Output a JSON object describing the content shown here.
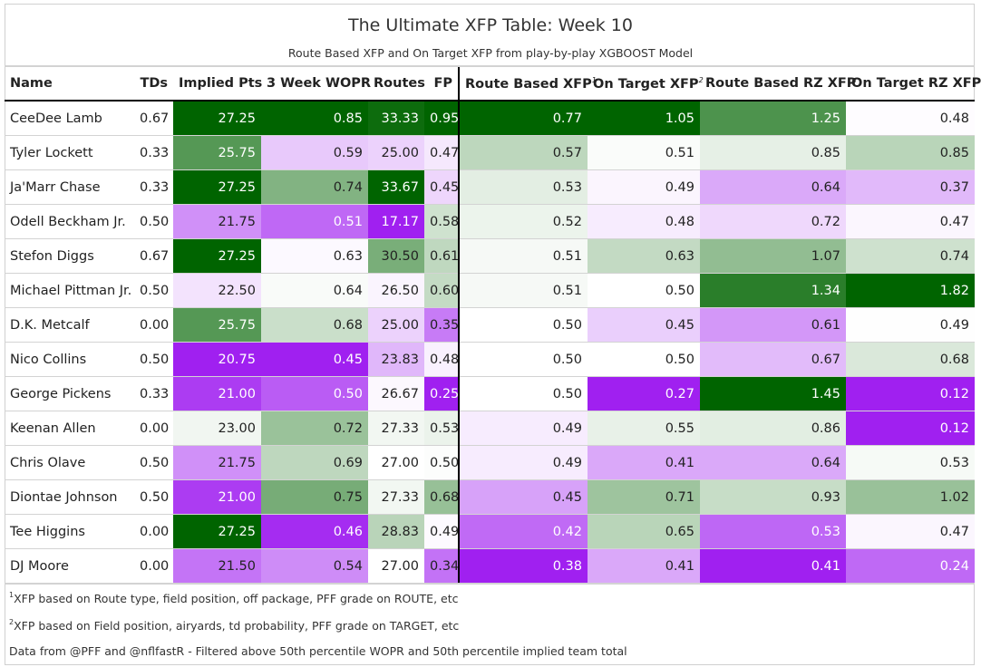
{
  "title": "The Ultimate XFP Table: Week 10",
  "subtitle": "Route Based XFP and On Target XFP from play-by-play XGBOOST Model",
  "columns": {
    "name": "Name",
    "tds": "TDs",
    "implied": "Implied Pts",
    "wopr": "3 Week WOPR",
    "routes": "Routes",
    "fp": "FP",
    "route_xfp": "Route Based XFP",
    "route_xfp_note": "1",
    "target_xfp": "On Target XFP",
    "target_xfp_note": "2",
    "route_rz": "Route Based RZ XFP",
    "target_rz": "On Target RZ XFP"
  },
  "rows": [
    {
      "name": "CeeDee Lamb",
      "tds": "0.67",
      "implied": "27.25",
      "wopr": "0.85",
      "routes": "33.33",
      "fp": "0.95",
      "route_xfp": "0.77",
      "target_xfp": "1.05",
      "route_rz": "1.25",
      "target_rz": "0.48"
    },
    {
      "name": "Tyler Lockett",
      "tds": "0.33",
      "implied": "25.75",
      "wopr": "0.59",
      "routes": "25.00",
      "fp": "0.47",
      "route_xfp": "0.57",
      "target_xfp": "0.51",
      "route_rz": "0.85",
      "target_rz": "0.85"
    },
    {
      "name": "Ja'Marr Chase",
      "tds": "0.33",
      "implied": "27.25",
      "wopr": "0.74",
      "routes": "33.67",
      "fp": "0.45",
      "route_xfp": "0.53",
      "target_xfp": "0.49",
      "route_rz": "0.64",
      "target_rz": "0.37"
    },
    {
      "name": "Odell Beckham Jr.",
      "tds": "0.50",
      "implied": "21.75",
      "wopr": "0.51",
      "routes": "17.17",
      "fp": "0.58",
      "route_xfp": "0.52",
      "target_xfp": "0.48",
      "route_rz": "0.72",
      "target_rz": "0.47"
    },
    {
      "name": "Stefon Diggs",
      "tds": "0.67",
      "implied": "27.25",
      "wopr": "0.63",
      "routes": "30.50",
      "fp": "0.61",
      "route_xfp": "0.51",
      "target_xfp": "0.63",
      "route_rz": "1.07",
      "target_rz": "0.74"
    },
    {
      "name": "Michael Pittman Jr.",
      "tds": "0.50",
      "implied": "22.50",
      "wopr": "0.64",
      "routes": "26.50",
      "fp": "0.60",
      "route_xfp": "0.51",
      "target_xfp": "0.50",
      "route_rz": "1.34",
      "target_rz": "1.82"
    },
    {
      "name": "D.K. Metcalf",
      "tds": "0.00",
      "implied": "25.75",
      "wopr": "0.68",
      "routes": "25.00",
      "fp": "0.35",
      "route_xfp": "0.50",
      "target_xfp": "0.45",
      "route_rz": "0.61",
      "target_rz": "0.49"
    },
    {
      "name": "Nico Collins",
      "tds": "0.50",
      "implied": "20.75",
      "wopr": "0.45",
      "routes": "23.83",
      "fp": "0.48",
      "route_xfp": "0.50",
      "target_xfp": "0.50",
      "route_rz": "0.67",
      "target_rz": "0.68"
    },
    {
      "name": "George Pickens",
      "tds": "0.33",
      "implied": "21.00",
      "wopr": "0.50",
      "routes": "26.67",
      "fp": "0.25",
      "route_xfp": "0.50",
      "target_xfp": "0.27",
      "route_rz": "1.45",
      "target_rz": "0.12"
    },
    {
      "name": "Keenan Allen",
      "tds": "0.00",
      "implied": "23.00",
      "wopr": "0.72",
      "routes": "27.33",
      "fp": "0.53",
      "route_xfp": "0.49",
      "target_xfp": "0.55",
      "route_rz": "0.86",
      "target_rz": "0.12"
    },
    {
      "name": "Chris Olave",
      "tds": "0.50",
      "implied": "21.75",
      "wopr": "0.69",
      "routes": "27.00",
      "fp": "0.50",
      "route_xfp": "0.49",
      "target_xfp": "0.41",
      "route_rz": "0.64",
      "target_rz": "0.53"
    },
    {
      "name": "Diontae Johnson",
      "tds": "0.50",
      "implied": "21.00",
      "wopr": "0.75",
      "routes": "27.33",
      "fp": "0.68",
      "route_xfp": "0.45",
      "target_xfp": "0.71",
      "route_rz": "0.93",
      "target_rz": "1.02"
    },
    {
      "name": "Tee Higgins",
      "tds": "0.00",
      "implied": "27.25",
      "wopr": "0.46",
      "routes": "28.83",
      "fp": "0.49",
      "route_xfp": "0.42",
      "target_xfp": "0.65",
      "route_rz": "0.53",
      "target_rz": "0.47"
    },
    {
      "name": "DJ Moore",
      "tds": "0.00",
      "implied": "21.50",
      "wopr": "0.54",
      "routes": "27.00",
      "fp": "0.34",
      "route_xfp": "0.38",
      "target_xfp": "0.41",
      "route_rz": "0.41",
      "target_rz": "0.24"
    }
  ],
  "colors": {
    "low": "#a020f0",
    "mid": "#ffffff",
    "high": "#006400"
  },
  "footnotes": {
    "note1_mark": "1",
    "note1": "XFP based on Route type, field position, off package, PFF grade on ROUTE, etc",
    "note2_mark": "2",
    "note2": "XFP based on Field position, airyards, td probability, PFF grade on TARGET, etc",
    "source": "Data from @PFF and @nflfastR - Filtered above 50th percentile WOPR and 50th percentile implied team total"
  }
}
